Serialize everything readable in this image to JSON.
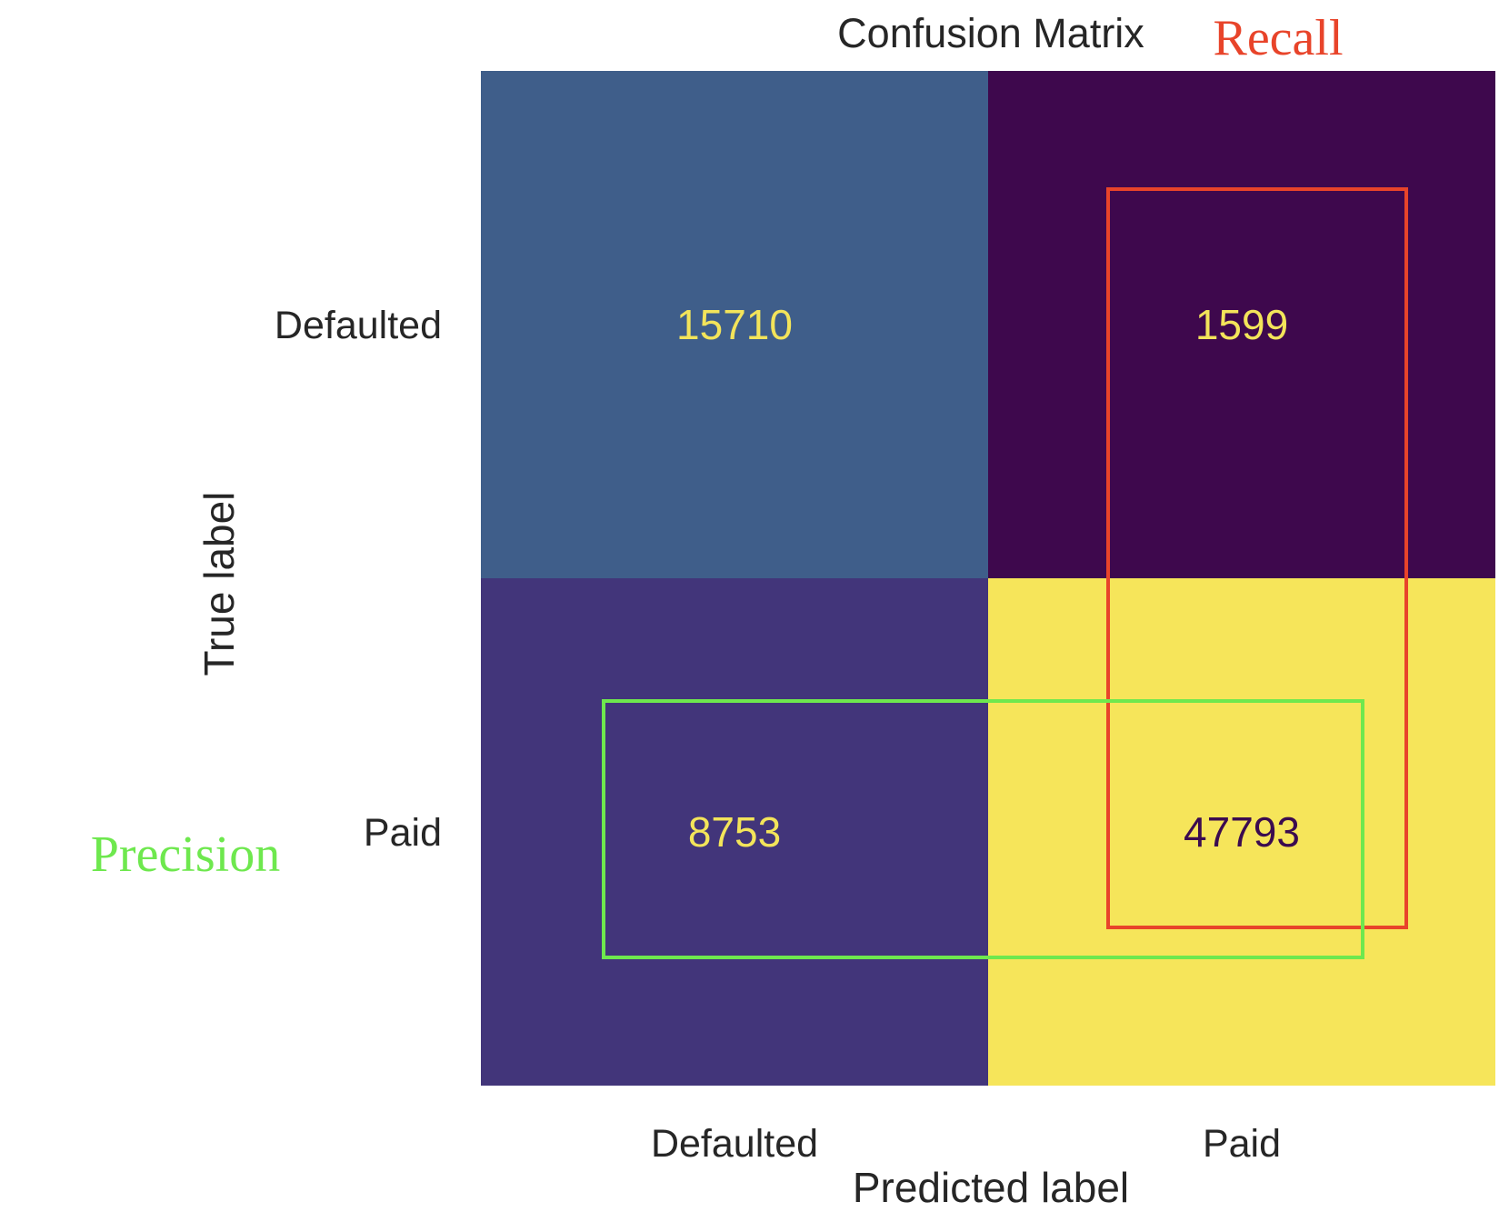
{
  "chart_data": {
    "type": "heatmap",
    "title": "Confusion Matrix",
    "xlabel": "Predicted label",
    "ylabel": "True label",
    "x_categories": [
      "Defaulted",
      "Paid"
    ],
    "y_categories": [
      "Defaulted",
      "Paid"
    ],
    "values": [
      [
        15710,
        1599
      ],
      [
        8753,
        47793
      ]
    ],
    "colormap": "viridis",
    "cell_colors": [
      [
        "#3f5e8a",
        "#3e084d"
      ],
      [
        "#42357a",
        "#f6e55a"
      ]
    ],
    "value_text_colors": [
      [
        "#f3e45a",
        "#f3e45a"
      ],
      [
        "#f3e45a",
        "#3b0b4f"
      ]
    ],
    "grid": false,
    "annotations": [
      {
        "label": "Recall",
        "color": "#e8442a",
        "box_around": "Predicted label = Paid (column)"
      },
      {
        "label": "Precision",
        "color": "#6ee84e",
        "box_around": "True label = Paid (row)"
      }
    ]
  }
}
